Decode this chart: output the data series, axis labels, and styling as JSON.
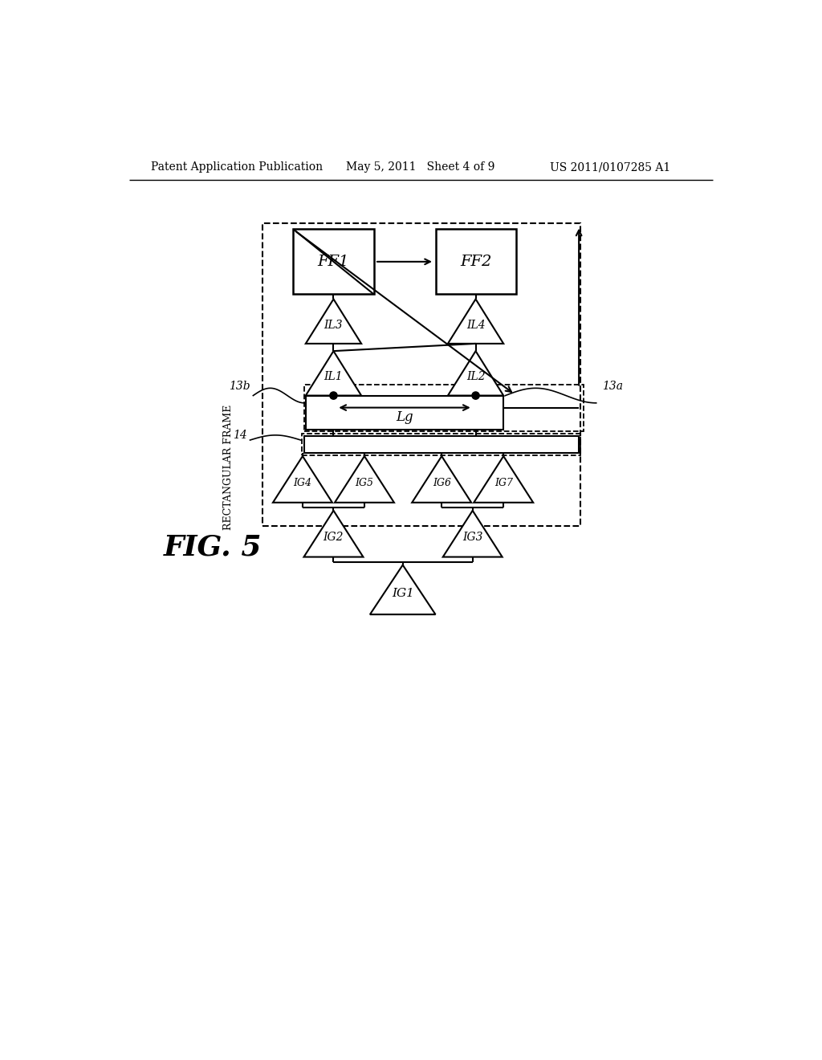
{
  "bg_color": "#ffffff",
  "header_left": "Patent Application Publication",
  "header_mid": "May 5, 2011   Sheet 4 of 9",
  "header_right": "US 2011/0107285 A1",
  "fig_label": "FIG. 5",
  "rect_frame_label": "RECTANGULAR FRAME",
  "label_13a": "13a",
  "label_13b": "13b",
  "label_14": "14",
  "label_Lg": "Lg"
}
